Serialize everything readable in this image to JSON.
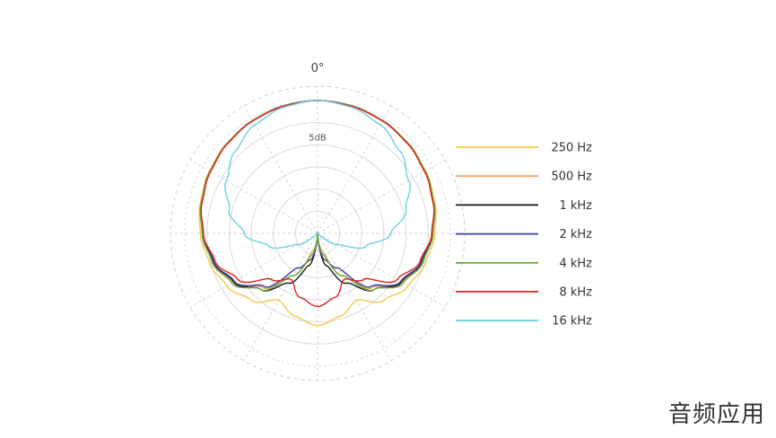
{
  "chart_data": {
    "type": "polar-line",
    "angle_label": "0°",
    "radial_tick_label": "5dB",
    "grid": true,
    "legend_position": "right",
    "series": [
      {
        "name": "250 Hz",
        "color": "#f2c94c",
        "values": [
          0,
          -0.2,
          -0.6,
          -1.1,
          -1.8,
          -2.6,
          -3.5,
          -4.7,
          -6.3,
          -8.7,
          -12.5,
          -10.6,
          -9.2
        ]
      },
      {
        "name": "500 Hz",
        "color": "#f4a36b",
        "values": [
          0,
          -0.2,
          -0.6,
          -1.2,
          -1.9,
          -2.8,
          -3.9,
          -5.4,
          -7.9,
          -12.6,
          -19.0,
          -26.0,
          -30.0
        ]
      },
      {
        "name": "1 kHz",
        "color": "#1a1a1a",
        "values": [
          0,
          -0.2,
          -0.6,
          -1.2,
          -2.0,
          -2.9,
          -4.0,
          -5.6,
          -8.1,
          -12.0,
          -17.0,
          -22.5,
          -30.0
        ]
      },
      {
        "name": "2 kHz",
        "color": "#3b3f9c",
        "values": [
          0,
          -0.2,
          -0.6,
          -1.2,
          -2.0,
          -2.9,
          -4.1,
          -5.7,
          -8.3,
          -13.0,
          -21.0,
          -23.8,
          -30.0
        ]
      },
      {
        "name": "4 kHz",
        "color": "#6cae3f",
        "values": [
          0,
          -0.2,
          -0.6,
          -1.2,
          -1.9,
          -2.8,
          -3.9,
          -5.3,
          -7.6,
          -12.0,
          -19.0,
          -25.0,
          -30.0
        ]
      },
      {
        "name": "8 kHz",
        "color": "#e02020",
        "values": [
          0,
          -0.3,
          -0.7,
          -1.3,
          -2.1,
          -3.0,
          -4.2,
          -6.0,
          -9.2,
          -15.3,
          -18.0,
          -15.0,
          -13.5
        ]
      },
      {
        "name": "16 kHz",
        "color": "#6ccfe0",
        "values": [
          0,
          -0.5,
          -1.7,
          -3.7,
          -6.2,
          -9.3,
          -13.4,
          -18.7,
          -25.0,
          -29.5,
          -30.0,
          -30.0,
          -30.0
        ]
      }
    ],
    "angles_deg": [
      0,
      15,
      30,
      45,
      60,
      75,
      90,
      105,
      120,
      135,
      150,
      165,
      180
    ],
    "r_range_db": [
      -30,
      0
    ]
  },
  "watermark": "音频应用"
}
